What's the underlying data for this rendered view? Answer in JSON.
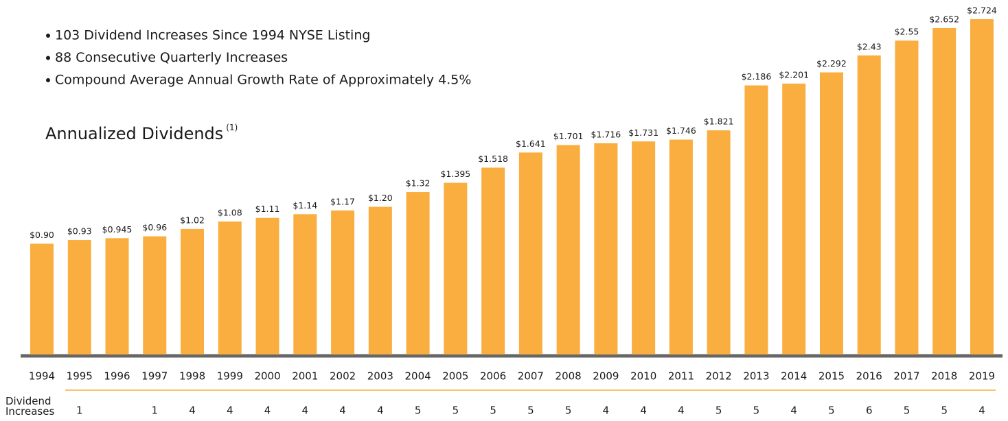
{
  "chart_data": {
    "type": "bar",
    "bullets": [
      "103 Dividend Increases Since 1994 NYSE Listing",
      "88 Consecutive Quarterly Increases",
      "Compound Average Annual Growth Rate of Approximately 4.5%"
    ],
    "title": "Annualized Dividends",
    "title_note": "(1)",
    "categories": [
      "1994",
      "1995",
      "1996",
      "1997",
      "1998",
      "1999",
      "2000",
      "2001",
      "2002",
      "2003",
      "2004",
      "2005",
      "2006",
      "2007",
      "2008",
      "2009",
      "2010",
      "2011",
      "2012",
      "2013",
      "2014",
      "2015",
      "2016",
      "2017",
      "2018",
      "2019"
    ],
    "values": [
      0.9,
      0.93,
      0.945,
      0.96,
      1.02,
      1.08,
      1.11,
      1.14,
      1.17,
      1.2,
      1.32,
      1.395,
      1.518,
      1.641,
      1.701,
      1.716,
      1.731,
      1.746,
      1.821,
      2.186,
      2.201,
      2.292,
      2.43,
      2.55,
      2.652,
      2.724
    ],
    "value_labels": [
      "$0.90",
      "$0.93",
      "$0.945",
      "$0.96",
      "$1.02",
      "$1.08",
      "$1.11",
      "$1.14",
      "$1.17",
      "$1.20",
      "$1.32",
      "$1.395",
      "$1.518",
      "$1.641",
      "$1.701",
      "$1.716",
      "$1.731",
      "$1.746",
      "$1.821",
      "$2.186",
      "$2.201",
      "$2.292",
      "$2.43",
      "$2.55",
      "$2.652",
      "$2.724"
    ],
    "color": "#F9AE3F",
    "row_label": "Dividend Increases",
    "increases": [
      null,
      1,
      null,
      1,
      4,
      4,
      4,
      4,
      4,
      4,
      5,
      5,
      5,
      5,
      5,
      4,
      4,
      4,
      5,
      5,
      4,
      5,
      6,
      5,
      5,
      4
    ]
  }
}
